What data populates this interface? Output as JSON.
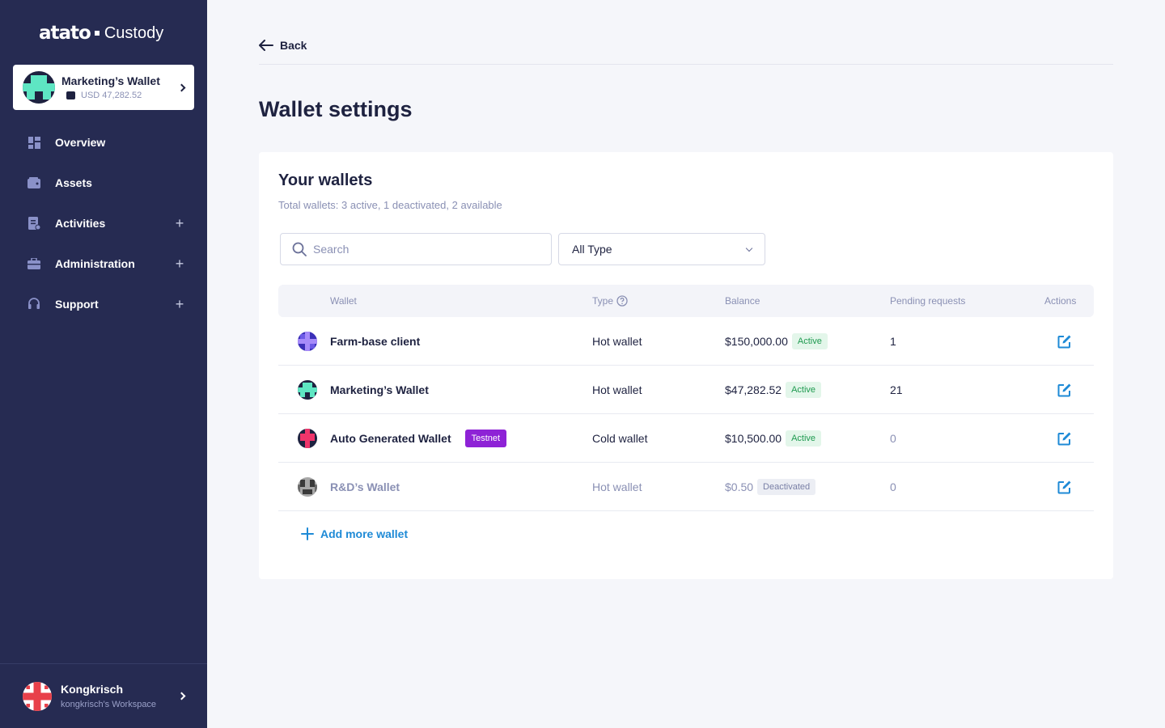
{
  "brand": {
    "logo": "atato",
    "product": "Custody"
  },
  "current_wallet": {
    "name": "Marketing’s Wallet",
    "balance": "USD 47,282.52"
  },
  "nav": [
    {
      "label": "Overview",
      "icon": "dashboard-icon",
      "expandable": false
    },
    {
      "label": "Assets",
      "icon": "wallet-icon",
      "expandable": false
    },
    {
      "label": "Activities",
      "icon": "document-icon",
      "expandable": true
    },
    {
      "label": "Administration",
      "icon": "briefcase-icon",
      "expandable": true
    },
    {
      "label": "Support",
      "icon": "headset-icon",
      "expandable": true
    }
  ],
  "user": {
    "name": "Kongkrisch",
    "workspace": "kongkrisch's Workspace"
  },
  "back_label": "Back",
  "page_title": "Wallet settings",
  "wallets_card": {
    "title": "Your wallets",
    "subtitle": "Total wallets: 3 active, 1 deactivated, 2 available",
    "search_placeholder": "Search",
    "type_filter": "All Type",
    "columns": {
      "wallet": "Wallet",
      "type": "Type",
      "balance": "Balance",
      "pending": "Pending requests",
      "actions": "Actions"
    },
    "rows": [
      {
        "name": "Farm-base client",
        "tag": "",
        "type": "Hot wallet",
        "balance": "$150,000.00",
        "status": "Active",
        "pending": "1"
      },
      {
        "name": "Marketing’s Wallet",
        "tag": "",
        "type": "Hot wallet",
        "balance": "$47,282.52",
        "status": "Active",
        "pending": "21"
      },
      {
        "name": "Auto Generated Wallet",
        "tag": "Testnet",
        "type": "Cold wallet",
        "balance": "$10,500.00",
        "status": "Active",
        "pending": "0"
      },
      {
        "name": "R&D’s Wallet",
        "tag": "",
        "type": "Hot wallet",
        "balance": "$0.50",
        "status": "Deactivated",
        "pending": "0"
      }
    ],
    "add_label": "Add more wallet"
  },
  "colors": {
    "sidebar": "#262b52",
    "accent": "#1e8ad6",
    "testnet": "#8e22d6",
    "active": "#1f9a50"
  }
}
